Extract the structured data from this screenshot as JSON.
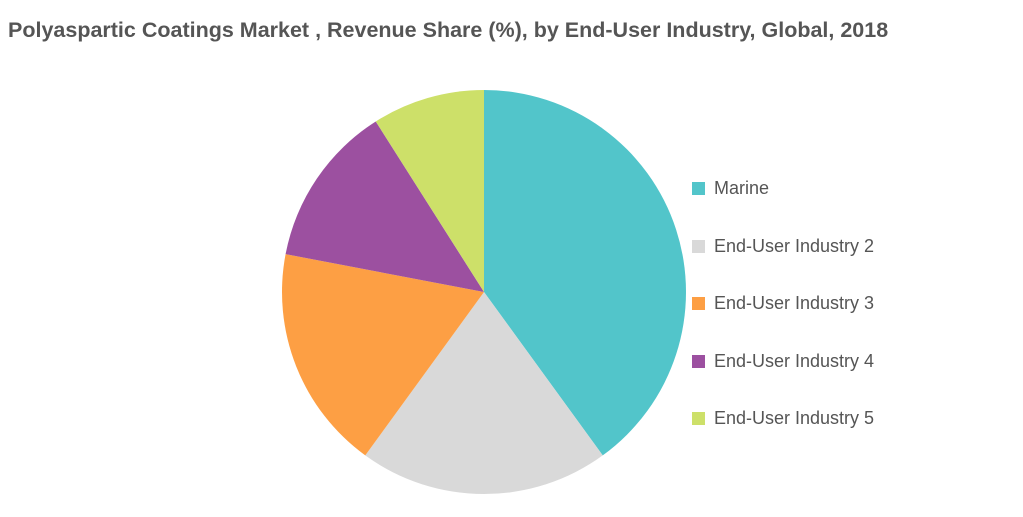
{
  "title": "Polyaspartic Coatings Market , Revenue Share (%), by End-User Industry, Global, 2018",
  "chart_data": {
    "type": "pie",
    "title": "Polyaspartic Coatings Market , Revenue Share (%), by End-User Industry, Global, 2018",
    "start_angle_deg": 0,
    "direction": "clockwise",
    "legend_position": "right",
    "slices": [
      {
        "label": "Marine",
        "value": 40,
        "color": "#52c5ca"
      },
      {
        "label": "End-User Industry 2",
        "value": 20,
        "color": "#d9d9d9"
      },
      {
        "label": "End-User Industry 3",
        "value": 18,
        "color": "#fd9f44"
      },
      {
        "label": "End-User Industry 4",
        "value": 13,
        "color": "#9c50a0"
      },
      {
        "label": "End-User Industry 5",
        "value": 9,
        "color": "#cde069"
      }
    ]
  }
}
